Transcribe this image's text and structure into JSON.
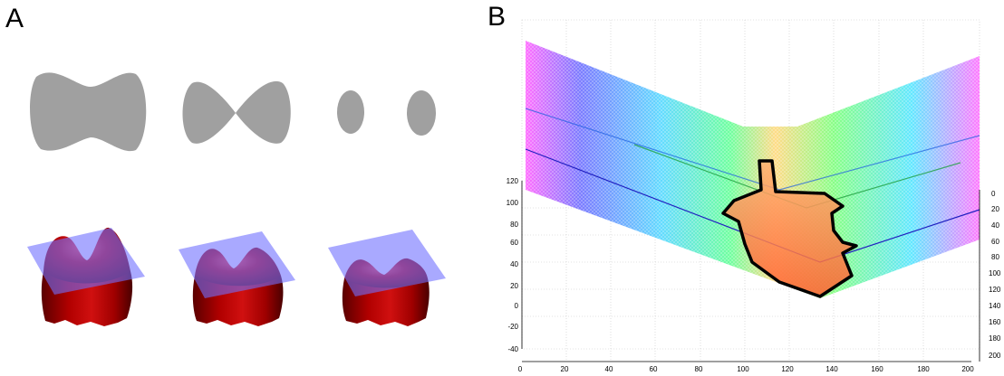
{
  "panels": {
    "a": {
      "letter": "A"
    },
    "b": {
      "letter": "B"
    }
  },
  "panel_b_axes": {
    "left_z_ticks": [
      "120",
      "100",
      "80",
      "60",
      "40",
      "20",
      "0",
      "-20",
      "-40"
    ],
    "bottom_x_ticks": [
      "0",
      "20",
      "40",
      "60",
      "80",
      "100",
      "120",
      "140",
      "160",
      "180",
      "200"
    ],
    "right_y_ticks": [
      "0",
      "20",
      "40",
      "60",
      "80",
      "100",
      "120",
      "140",
      "160",
      "180",
      "200"
    ]
  },
  "colors": {
    "level_set": "#a0a0a0",
    "surface": "#8b0000",
    "plane": "#6f6fff",
    "contour": "#000000"
  }
}
